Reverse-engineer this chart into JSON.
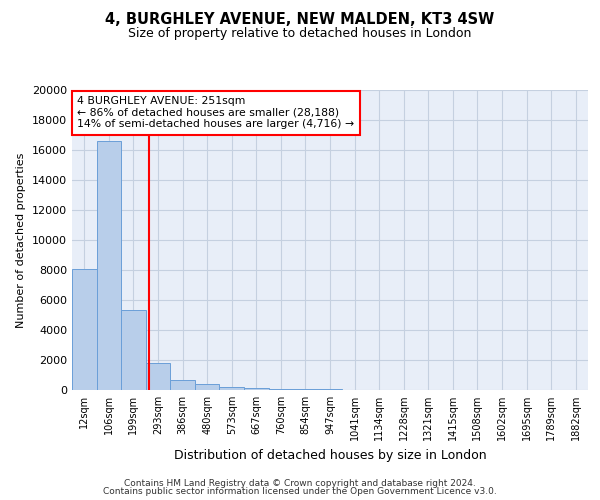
{
  "title": "4, BURGHLEY AVENUE, NEW MALDEN, KT3 4SW",
  "subtitle": "Size of property relative to detached houses in London",
  "xlabel": "Distribution of detached houses by size in London",
  "ylabel": "Number of detached properties",
  "bar_labels": [
    "12sqm",
    "106sqm",
    "199sqm",
    "293sqm",
    "386sqm",
    "480sqm",
    "573sqm",
    "667sqm",
    "760sqm",
    "854sqm",
    "947sqm",
    "1041sqm",
    "1134sqm",
    "1228sqm",
    "1321sqm",
    "1415sqm",
    "1508sqm",
    "1602sqm",
    "1695sqm",
    "1789sqm",
    "1882sqm"
  ],
  "bar_values": [
    8100,
    16600,
    5350,
    1800,
    650,
    370,
    220,
    130,
    80,
    50,
    35,
    25,
    20,
    15,
    12,
    10,
    8,
    6,
    5,
    4,
    3
  ],
  "bar_color": "#b8ceea",
  "bar_edge_color": "#6a9fd8",
  "vline_x": 2.62,
  "vline_color": "red",
  "annotation_text": "4 BURGHLEY AVENUE: 251sqm\n← 86% of detached houses are smaller (28,188)\n14% of semi-detached houses are larger (4,716) →",
  "annotation_box_color": "white",
  "annotation_box_edge_color": "red",
  "ylim": [
    0,
    20000
  ],
  "yticks": [
    0,
    2000,
    4000,
    6000,
    8000,
    10000,
    12000,
    14000,
    16000,
    18000,
    20000
  ],
  "footer_line1": "Contains HM Land Registry data © Crown copyright and database right 2024.",
  "footer_line2": "Contains public sector information licensed under the Open Government Licence v3.0.",
  "bg_color": "#e8eef8",
  "grid_color": "#c5d0e0"
}
